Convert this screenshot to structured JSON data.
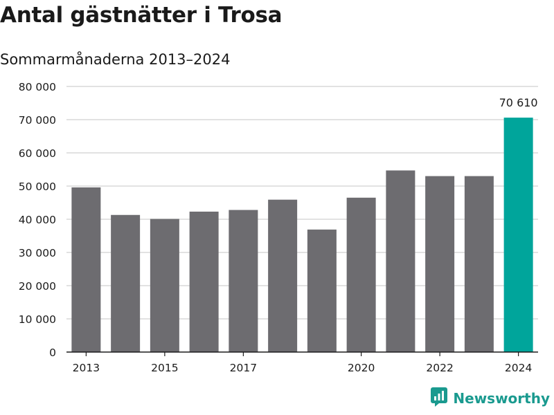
{
  "header": {
    "title": "Antal gästnätter i Trosa",
    "subtitle": "Sommarmånaderna 2013–2024"
  },
  "brand": {
    "name": "Newsworthy",
    "icon": "newsworthy-logo-icon",
    "color": "#1a9a8f"
  },
  "chart_data": {
    "type": "bar",
    "title": "Antal gästnätter i Trosa",
    "subtitle": "Sommarmånaderna 2013–2024",
    "xlabel": "",
    "ylabel": "",
    "categories": [
      "2013",
      "2014",
      "2015",
      "2016",
      "2017",
      "2018",
      "2019",
      "2020",
      "2021",
      "2022",
      "2023",
      "2024"
    ],
    "x_tick_labels": [
      "2013",
      "",
      "2015",
      "",
      "2017",
      "",
      "",
      "2020",
      "",
      "2022",
      "",
      "2024"
    ],
    "values": [
      49600,
      41300,
      40100,
      42300,
      42800,
      45900,
      36900,
      46500,
      54700,
      53000,
      53000,
      70610
    ],
    "ylim": [
      0,
      80000
    ],
    "y_ticks": [
      0,
      10000,
      20000,
      30000,
      40000,
      50000,
      60000,
      70000,
      80000
    ],
    "y_tick_labels": [
      "0",
      "10 000",
      "20 000",
      "30 000",
      "40 000",
      "50 000",
      "60 000",
      "70 000",
      "80 000"
    ],
    "grid": true,
    "bar_color": "#6d6c70",
    "highlight_color": "#00a59b",
    "highlight_index": 11,
    "annotations": [
      {
        "category": "2024",
        "text": "70 610"
      }
    ]
  }
}
